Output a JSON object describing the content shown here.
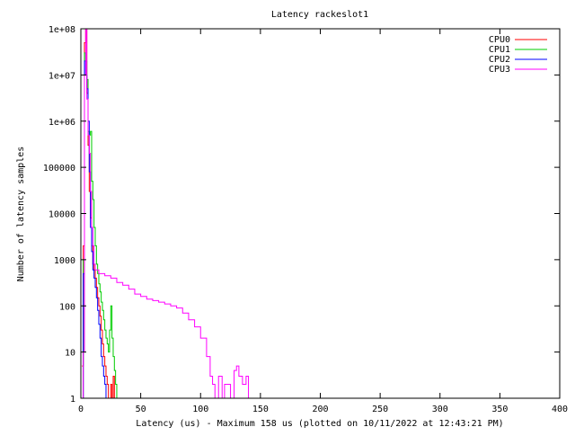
{
  "chart_data": {
    "type": "line",
    "title": "Latency rackeslot1",
    "xlabel": "Latency (us) - Maximum 158 us (plotted on 10/11/2022 at 12:43:21 PM)",
    "ylabel": "Number of latency samples",
    "xlim": [
      0,
      400
    ],
    "ylim": [
      1,
      100000000
    ],
    "yscale": "log",
    "grid": false,
    "legend_position": "top-right",
    "x_ticks": [
      {
        "value": 0,
        "label": "0"
      },
      {
        "value": 50,
        "label": "50"
      },
      {
        "value": 100,
        "label": "100"
      },
      {
        "value": 150,
        "label": "150"
      },
      {
        "value": 200,
        "label": "200"
      },
      {
        "value": 250,
        "label": "250"
      },
      {
        "value": 300,
        "label": "300"
      },
      {
        "value": 350,
        "label": "350"
      },
      {
        "value": 400,
        "label": "400"
      }
    ],
    "y_ticks": [
      {
        "value": 1,
        "label": "1"
      },
      {
        "value": 10,
        "label": "10"
      },
      {
        "value": 100,
        "label": "100"
      },
      {
        "value": 1000,
        "label": "1000"
      },
      {
        "value": 10000,
        "label": "10000"
      },
      {
        "value": 100000,
        "label": "100000"
      },
      {
        "value": 1000000,
        "label": "1e+06"
      },
      {
        "value": 10000000,
        "label": "1e+07"
      },
      {
        "value": 100000000,
        "label": "1e+08"
      }
    ],
    "series": [
      {
        "name": "CPU0",
        "color": "#ff0000",
        "points": [
          [
            1,
            5
          ],
          [
            2,
            2000
          ],
          [
            3,
            50000000
          ],
          [
            4,
            100000000
          ],
          [
            5,
            4000000
          ],
          [
            6,
            300000
          ],
          [
            7,
            30000
          ],
          [
            8,
            8000
          ],
          [
            9,
            2000
          ],
          [
            10,
            800
          ],
          [
            11,
            600
          ],
          [
            12,
            400
          ],
          [
            13,
            250
          ],
          [
            14,
            150
          ],
          [
            15,
            100
          ],
          [
            16,
            60
          ],
          [
            17,
            30
          ],
          [
            18,
            15
          ],
          [
            19,
            8
          ],
          [
            20,
            5
          ],
          [
            21,
            3
          ],
          [
            22,
            2
          ],
          [
            23,
            1
          ],
          [
            24,
            1
          ],
          [
            25,
            2
          ],
          [
            26,
            1
          ],
          [
            27,
            3
          ],
          [
            28,
            1
          ],
          [
            29,
            1
          ]
        ]
      },
      {
        "name": "CPU1",
        "color": "#00cc00",
        "points": [
          [
            1,
            1
          ],
          [
            2,
            1000
          ],
          [
            3,
            30000000
          ],
          [
            4,
            20000000
          ],
          [
            5,
            8000000
          ],
          [
            6,
            600000
          ],
          [
            7,
            500000
          ],
          [
            8,
            600000
          ],
          [
            9,
            50000
          ],
          [
            10,
            20000
          ],
          [
            11,
            5000
          ],
          [
            12,
            2000
          ],
          [
            13,
            800
          ],
          [
            14,
            500
          ],
          [
            15,
            300
          ],
          [
            16,
            200
          ],
          [
            17,
            120
          ],
          [
            18,
            80
          ],
          [
            19,
            50
          ],
          [
            20,
            30
          ],
          [
            21,
            20
          ],
          [
            22,
            15
          ],
          [
            23,
            10
          ],
          [
            24,
            30
          ],
          [
            25,
            100
          ],
          [
            26,
            20
          ],
          [
            27,
            8
          ],
          [
            28,
            4
          ],
          [
            29,
            2
          ],
          [
            30,
            1
          ]
        ]
      },
      {
        "name": "CPU2",
        "color": "#0000ff",
        "points": [
          [
            1,
            1
          ],
          [
            2,
            500
          ],
          [
            3,
            20000000
          ],
          [
            4,
            10000000
          ],
          [
            5,
            5000000
          ],
          [
            6,
            1000000
          ],
          [
            7,
            80000
          ],
          [
            8,
            5000
          ],
          [
            9,
            1500
          ],
          [
            10,
            600
          ],
          [
            11,
            400
          ],
          [
            12,
            250
          ],
          [
            13,
            150
          ],
          [
            14,
            80
          ],
          [
            15,
            40
          ],
          [
            16,
            20
          ],
          [
            17,
            8
          ],
          [
            18,
            5
          ],
          [
            19,
            3
          ],
          [
            20,
            2
          ],
          [
            21,
            1
          ]
        ]
      },
      {
        "name": "CPU3",
        "color": "#ff00ff",
        "points": [
          [
            1,
            1
          ],
          [
            2,
            10
          ],
          [
            3,
            10000000
          ],
          [
            4,
            100000000
          ],
          [
            5,
            3000000
          ],
          [
            6,
            500000
          ],
          [
            7,
            200000
          ],
          [
            8,
            30000
          ],
          [
            9,
            5000
          ],
          [
            10,
            2000
          ],
          [
            11,
            800
          ],
          [
            12,
            600
          ],
          [
            15,
            500
          ],
          [
            20,
            450
          ],
          [
            25,
            400
          ],
          [
            30,
            320
          ],
          [
            35,
            280
          ],
          [
            40,
            230
          ],
          [
            45,
            180
          ],
          [
            50,
            160
          ],
          [
            55,
            140
          ],
          [
            60,
            130
          ],
          [
            65,
            120
          ],
          [
            70,
            110
          ],
          [
            75,
            100
          ],
          [
            80,
            90
          ],
          [
            85,
            70
          ],
          [
            90,
            50
          ],
          [
            95,
            35
          ],
          [
            100,
            20
          ],
          [
            105,
            8
          ],
          [
            108,
            3
          ],
          [
            110,
            2
          ],
          [
            112,
            1
          ],
          [
            115,
            3
          ],
          [
            118,
            1
          ],
          [
            120,
            2
          ],
          [
            125,
            1
          ],
          [
            128,
            4
          ],
          [
            130,
            5
          ],
          [
            132,
            3
          ],
          [
            135,
            2
          ],
          [
            138,
            3
          ],
          [
            140,
            1
          ],
          [
            145,
            1
          ],
          [
            150,
            1
          ],
          [
            155,
            1
          ],
          [
            158,
            1
          ]
        ]
      }
    ]
  }
}
